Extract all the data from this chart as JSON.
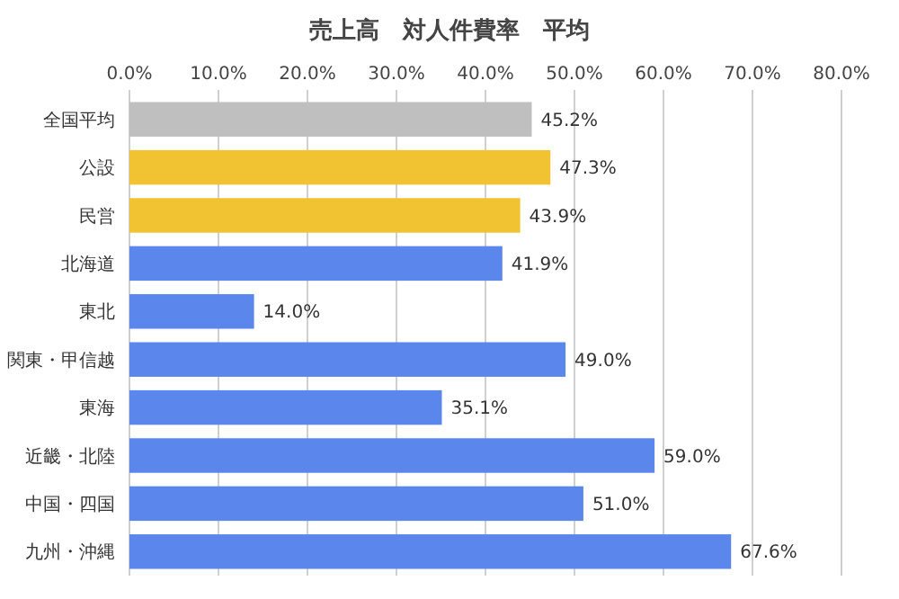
{
  "chart_data": {
    "type": "bar",
    "orientation": "horizontal",
    "title": "売上高　対人件費率　平均",
    "categories": [
      "全国平均",
      "公設",
      "民営",
      "北海道",
      "東北",
      "関東・甲信越",
      "東海",
      "近畿・北陸",
      "中国・四国",
      "九州・沖縄"
    ],
    "values": [
      45.2,
      47.3,
      43.9,
      41.9,
      14.0,
      49.0,
      35.1,
      59.0,
      51.0,
      67.6
    ],
    "value_labels": [
      "45.2%",
      "47.3%",
      "43.9%",
      "41.9%",
      "14.0%",
      "49.0%",
      "35.1%",
      "59.0%",
      "51.0%",
      "67.6%"
    ],
    "colors": [
      "#bfbfbf",
      "#f1c232",
      "#f1c232",
      "#5b87ec",
      "#5b87ec",
      "#5b87ec",
      "#5b87ec",
      "#5b87ec",
      "#5b87ec",
      "#5b87ec"
    ],
    "xlim": [
      0,
      80
    ],
    "xticks": [
      {
        "value": 0,
        "label": "0.0%"
      },
      {
        "value": 10,
        "label": "10.0%"
      },
      {
        "value": 20,
        "label": "20.0%"
      },
      {
        "value": 30,
        "label": "30.0%"
      },
      {
        "value": 40,
        "label": "40.0%"
      },
      {
        "value": 50,
        "label": "50.0%"
      },
      {
        "value": 60,
        "label": "60.0%"
      },
      {
        "value": 70,
        "label": "70.0%"
      },
      {
        "value": 80,
        "label": "80.0%"
      }
    ],
    "grid": "x"
  }
}
